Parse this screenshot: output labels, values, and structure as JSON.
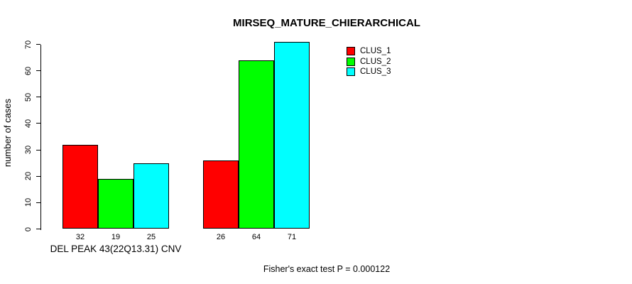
{
  "chart_data": {
    "type": "bar",
    "title": "MIRSEQ_MATURE_CHIERARCHICAL",
    "ylabel": "number of cases",
    "xlabel": "DEL PEAK 43(22Q13.31) CNV",
    "annotation": "Fisher's exact test P = 0.000122",
    "ylim": [
      0,
      70
    ],
    "yticks": [
      0,
      10,
      20,
      30,
      40,
      50,
      60,
      70
    ],
    "grid": false,
    "legend_position": "top-right",
    "categories": [
      "DEL PEAK 43(22Q13.31) CNV",
      ""
    ],
    "series": [
      {
        "name": "CLUS_1",
        "color": "#FF0000",
        "values": [
          32,
          26
        ]
      },
      {
        "name": "CLUS_2",
        "color": "#00FF00",
        "values": [
          19,
          64
        ]
      },
      {
        "name": "CLUS_3",
        "color": "#00FFFF",
        "values": [
          25,
          71
        ]
      }
    ],
    "bar_value_labels": [
      [
        32,
        19,
        25
      ],
      [
        26,
        64,
        71
      ]
    ]
  },
  "legend": {
    "items": [
      {
        "label": "CLUS_1",
        "color": "#FF0000"
      },
      {
        "label": "CLUS_2",
        "color": "#00FF00"
      },
      {
        "label": "CLUS_3",
        "color": "#00FFFF"
      }
    ]
  }
}
